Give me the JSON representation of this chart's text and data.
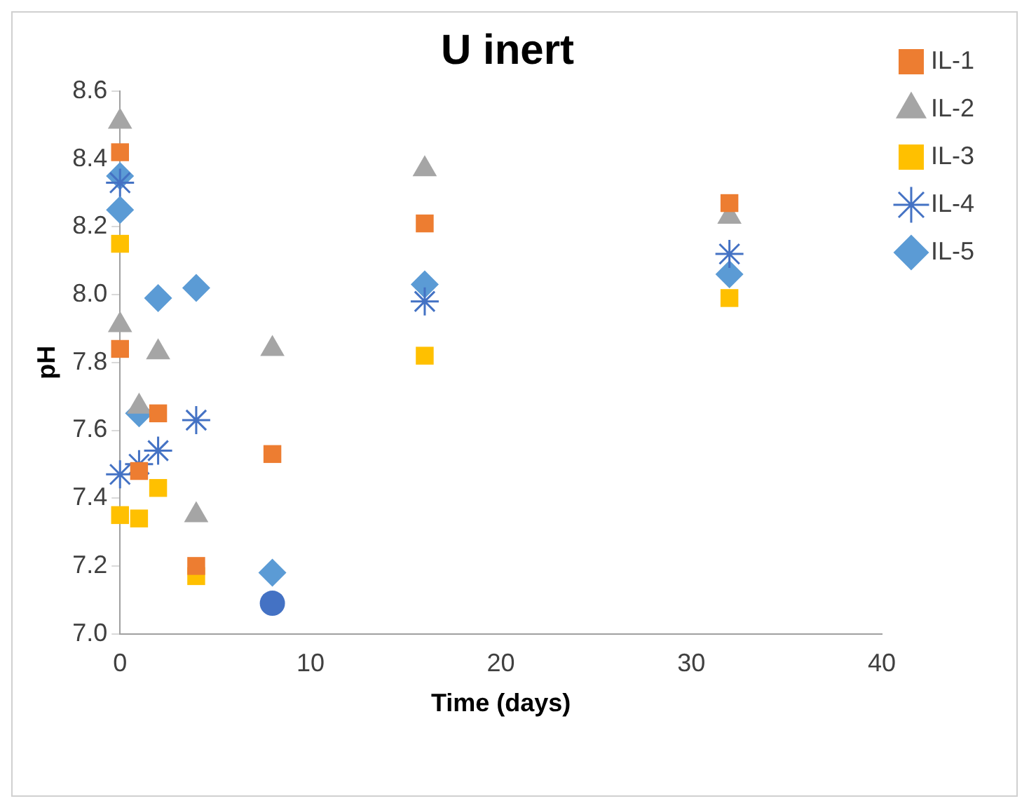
{
  "chart_data": {
    "type": "scatter",
    "title": "U inert",
    "xlabel": "Time (days)",
    "ylabel": "pH",
    "xlim": [
      0,
      40
    ],
    "xticks": [
      0,
      10,
      20,
      30,
      40
    ],
    "ylim": [
      7.0,
      8.6
    ],
    "yticks": [
      {
        "value": 7,
        "label": "7.0"
      },
      7.2,
      7.4,
      7.6,
      7.8,
      {
        "value": 8,
        "label": "8.0"
      },
      8.2,
      8.4,
      8.6
    ],
    "grid": false,
    "legend": "right",
    "series": [
      {
        "name": "IL-1",
        "color": "#ed7d31",
        "marker": "square",
        "x": [
          0,
          0,
          1,
          2,
          4,
          8,
          16,
          32
        ],
        "values": [
          8.42,
          7.84,
          7.48,
          7.65,
          7.2,
          7.53,
          8.21,
          8.27
        ]
      },
      {
        "name": "IL-2",
        "color": "#a5a5a5",
        "marker": "triangle",
        "x": [
          0,
          0,
          1,
          2,
          4,
          8,
          16,
          32
        ],
        "values": [
          8.51,
          7.91,
          7.67,
          7.83,
          7.35,
          7.84,
          8.37,
          8.23
        ]
      },
      {
        "name": "IL-3",
        "color": "#ffc000",
        "marker": "square",
        "x": [
          0,
          0,
          1,
          2,
          4,
          16,
          32
        ],
        "values": [
          8.15,
          7.35,
          7.34,
          7.43,
          7.17,
          7.82,
          7.99
        ]
      },
      {
        "name": "IL-4",
        "color": "#4472c4",
        "marker": "cross",
        "x": [
          0,
          0,
          1,
          2,
          4,
          16,
          32
        ],
        "values": [
          8.33,
          7.47,
          7.5,
          7.54,
          7.63,
          7.98,
          8.12
        ]
      },
      {
        "name": "IL-5",
        "color": "#5b9bd5",
        "marker": "diamond",
        "x": [
          0,
          0,
          1,
          2,
          4,
          8,
          16,
          32
        ],
        "values": [
          8.35,
          8.25,
          7.65,
          7.99,
          8.02,
          7.18,
          8.03,
          8.06
        ]
      },
      {
        "color": "#4472c4",
        "marker": "circle",
        "x": [
          8
        ],
        "values": [
          7.09
        ]
      }
    ]
  }
}
